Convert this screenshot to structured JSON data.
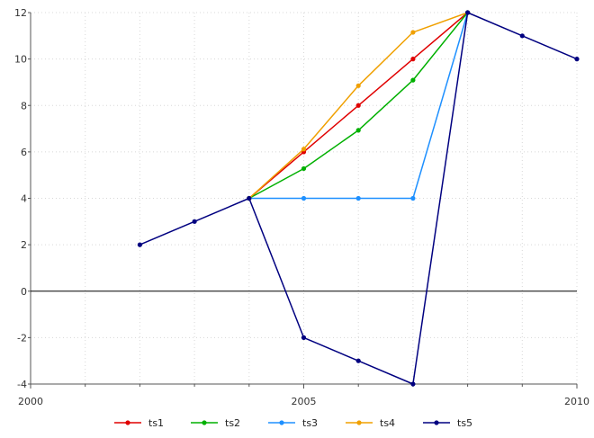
{
  "chart_data": {
    "type": "line",
    "title": "",
    "xlabel": "",
    "ylabel": "",
    "xlim": [
      2000,
      2010
    ],
    "ylim": [
      -4,
      12
    ],
    "x_ticks": [
      2000,
      2005,
      2010
    ],
    "x_tick_labels": [
      "2000",
      "2005",
      "2010"
    ],
    "y_ticks": [
      -4,
      -2,
      0,
      2,
      4,
      6,
      8,
      10,
      12
    ],
    "y_tick_labels": [
      "-4",
      "-2",
      "0",
      "2",
      "4",
      "6",
      "8",
      "10",
      "12"
    ],
    "grid": true,
    "zero_line": true,
    "legend_position": "bottom",
    "series": [
      {
        "name": "ts1",
        "color": "#e00000",
        "x": [
          2004,
          2005,
          2006,
          2007,
          2008
        ],
        "y": [
          4,
          6,
          8,
          10,
          12
        ]
      },
      {
        "name": "ts2",
        "color": "#00b000",
        "x": [
          2004,
          2005,
          2006,
          2007,
          2008
        ],
        "y": [
          4,
          5.28,
          6.93,
          9.09,
          12
        ]
      },
      {
        "name": "ts3",
        "color": "#1e90ff",
        "x": [
          2004,
          2005,
          2006,
          2007,
          2008
        ],
        "y": [
          4,
          4,
          4,
          4,
          12
        ]
      },
      {
        "name": "ts4",
        "color": "#f0a000",
        "x": [
          2004,
          2005,
          2006,
          2007,
          2008
        ],
        "y": [
          4,
          6.12,
          8.85,
          11.15,
          12
        ]
      },
      {
        "name": "ts5",
        "color": "#000080",
        "x": [
          2002,
          2003,
          2004,
          2005,
          2006,
          2007,
          2008,
          2009,
          2010
        ],
        "y": [
          2,
          3,
          4,
          -2,
          -3,
          -4,
          12,
          11,
          10
        ]
      }
    ]
  }
}
